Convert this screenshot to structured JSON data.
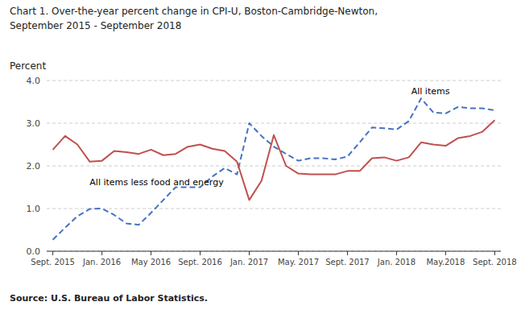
{
  "chart_data": {
    "type": "line",
    "title": "Chart 1.  Over-the-year percent change in CPI-U, Boston-Cambridge-Newton,",
    "subtitle": "September 2015 - September 2018",
    "y_label": "Percent",
    "source": "Source: U.S. Bureau of Labor Statistics.",
    "categories": [
      "Sept. 2015",
      null,
      null,
      null,
      "Jan. 2016",
      null,
      null,
      null,
      "May 2016",
      null,
      null,
      null,
      "Sept. 2016",
      null,
      null,
      null,
      "Jan. 2017",
      null,
      null,
      null,
      "May. 2017",
      null,
      null,
      null,
      "Sept. 2017",
      null,
      null,
      null,
      "Jan. 2018",
      null,
      null,
      null,
      "May.2018",
      null,
      null,
      null,
      "Sept. 2018"
    ],
    "ylim": [
      0.0,
      4.0
    ],
    "yticks": [
      {
        "value": 0,
        "label": "0.0"
      },
      {
        "value": 1,
        "label": "1.0"
      },
      {
        "value": 2,
        "label": "2.0"
      },
      {
        "value": 3,
        "label": "3.0"
      },
      {
        "value": 4,
        "label": "4.0"
      }
    ],
    "grid": true,
    "series": [
      {
        "name": "All items",
        "color": "#4472C4",
        "line_style": "dashed",
        "values": [
          0.27,
          0.55,
          0.82,
          0.99,
          1.0,
          0.85,
          0.65,
          0.62,
          0.9,
          1.2,
          1.5,
          1.5,
          1.5,
          1.75,
          1.95,
          1.8,
          3.0,
          2.7,
          2.45,
          2.28,
          2.12,
          2.18,
          2.18,
          2.15,
          2.22,
          2.55,
          2.9,
          2.88,
          2.85,
          3.05,
          3.58,
          3.25,
          3.23,
          3.38,
          3.35,
          3.35,
          3.3
        ]
      },
      {
        "name": "All items less food and energy",
        "color": "#C0504D",
        "line_style": "solid",
        "values": [
          2.38,
          2.7,
          2.5,
          2.1,
          2.12,
          2.35,
          2.32,
          2.28,
          2.38,
          2.25,
          2.28,
          2.45,
          2.5,
          2.4,
          2.35,
          2.1,
          1.2,
          1.65,
          2.72,
          2.0,
          1.82,
          1.8,
          1.8,
          1.8,
          1.88,
          1.88,
          2.18,
          2.2,
          2.12,
          2.2,
          2.55,
          2.5,
          2.47,
          2.65,
          2.7,
          2.8,
          3.07
        ]
      }
    ],
    "annotations": [
      {
        "text": "All items",
        "x": 29.2,
        "y": 3.62
      },
      {
        "text": "All items less food and energy",
        "x": 3.0,
        "y": 1.75
      }
    ]
  }
}
